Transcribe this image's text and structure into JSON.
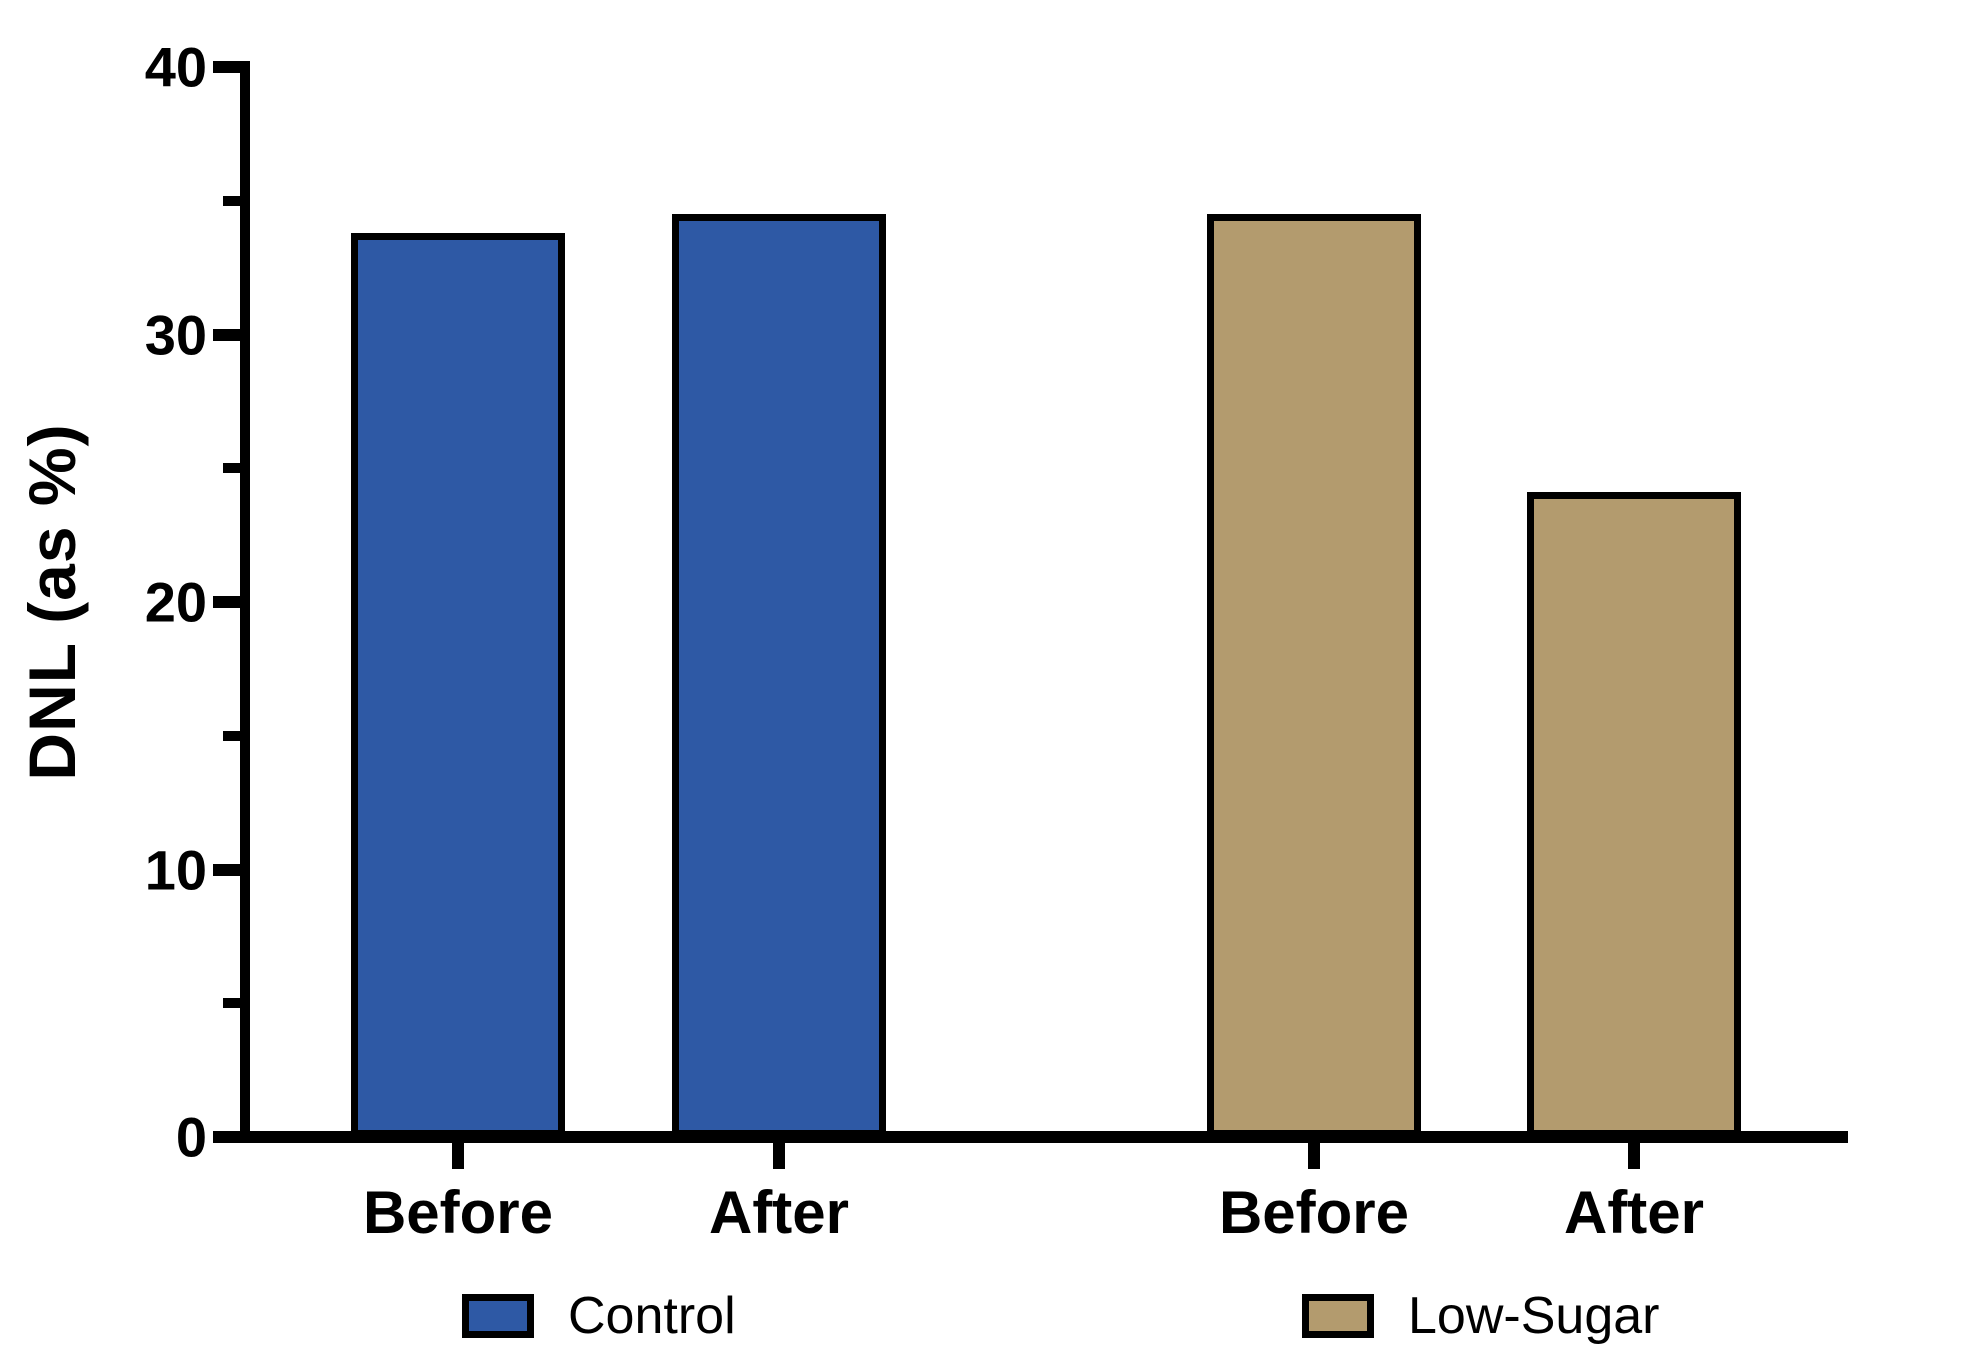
{
  "chart_data": {
    "type": "bar",
    "ylabel": "DNL (as %)",
    "xlabel": "",
    "ylim": [
      0,
      40
    ],
    "yticks_major": [
      0,
      10,
      20,
      30,
      40
    ],
    "yticks_minor": [
      5,
      15,
      25,
      35
    ],
    "grid": false,
    "legend_position": "bottom",
    "categories": [
      "Before",
      "After"
    ],
    "series": [
      {
        "name": "Control",
        "color": "#2E59A5",
        "values": [
          33.8,
          34.5
        ]
      },
      {
        "name": "Low-Sugar",
        "color": "#B39B6E",
        "values": [
          34.5,
          24.1
        ]
      }
    ],
    "bar_border_color": "#000000",
    "axis_color": "#000000"
  },
  "legend": {
    "items": [
      {
        "label": "Control"
      },
      {
        "label": "Low-Sugar"
      }
    ]
  }
}
